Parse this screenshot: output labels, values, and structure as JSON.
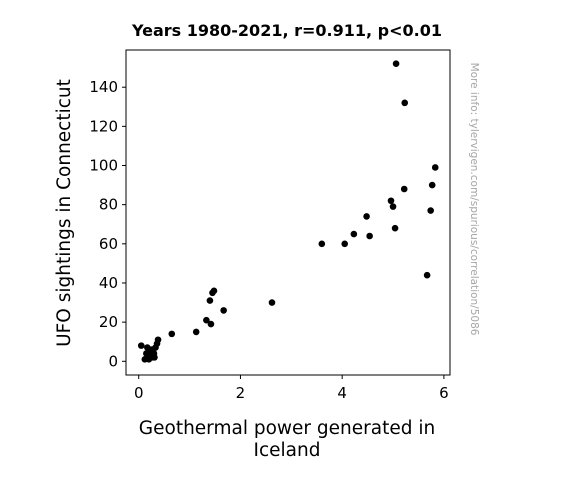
{
  "chart_data": {
    "type": "scatter",
    "title": "Years 1980-2021, r=0.911, p<0.01",
    "xlabel": [
      "Geothermal power generated in",
      "Iceland"
    ],
    "ylabel": "UFO sightings in Connecticut",
    "source_note": "More info: tylervigen.com/spurious/correlation/5086",
    "xlim": [
      -0.25,
      6.12
    ],
    "ylim": [
      -7,
      159
    ],
    "xticks": [
      0,
      2,
      4,
      6
    ],
    "yticks": [
      0,
      20,
      40,
      60,
      80,
      100,
      120,
      140
    ],
    "grid": false,
    "marker_color": "#000000",
    "points": [
      {
        "x": 0.05,
        "y": 8
      },
      {
        "x": 0.12,
        "y": 1
      },
      {
        "x": 0.15,
        "y": 4
      },
      {
        "x": 0.17,
        "y": 7
      },
      {
        "x": 0.18,
        "y": 2
      },
      {
        "x": 0.2,
        "y": 1
      },
      {
        "x": 0.22,
        "y": 5
      },
      {
        "x": 0.24,
        "y": 3
      },
      {
        "x": 0.26,
        "y": 6
      },
      {
        "x": 0.28,
        "y": 2
      },
      {
        "x": 0.3,
        "y": 4
      },
      {
        "x": 0.31,
        "y": 2
      },
      {
        "x": 0.33,
        "y": 7
      },
      {
        "x": 0.36,
        "y": 9
      },
      {
        "x": 0.38,
        "y": 11
      },
      {
        "x": 0.65,
        "y": 14
      },
      {
        "x": 1.13,
        "y": 15
      },
      {
        "x": 1.33,
        "y": 21
      },
      {
        "x": 1.4,
        "y": 31
      },
      {
        "x": 1.42,
        "y": 19
      },
      {
        "x": 1.45,
        "y": 35
      },
      {
        "x": 1.48,
        "y": 36
      },
      {
        "x": 1.67,
        "y": 26
      },
      {
        "x": 2.62,
        "y": 30
      },
      {
        "x": 3.6,
        "y": 60
      },
      {
        "x": 4.05,
        "y": 60
      },
      {
        "x": 4.23,
        "y": 65
      },
      {
        "x": 4.48,
        "y": 74
      },
      {
        "x": 4.54,
        "y": 64
      },
      {
        "x": 4.96,
        "y": 82
      },
      {
        "x": 5.0,
        "y": 79
      },
      {
        "x": 5.04,
        "y": 68
      },
      {
        "x": 5.06,
        "y": 152
      },
      {
        "x": 5.22,
        "y": 88
      },
      {
        "x": 5.23,
        "y": 132
      },
      {
        "x": 5.67,
        "y": 44
      },
      {
        "x": 5.74,
        "y": 77
      },
      {
        "x": 5.77,
        "y": 90
      },
      {
        "x": 5.83,
        "y": 99
      }
    ]
  }
}
